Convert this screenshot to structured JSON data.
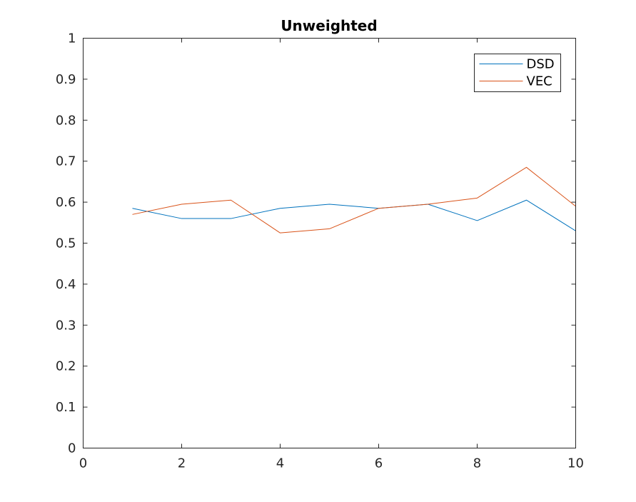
{
  "chart_data": {
    "type": "line",
    "title": "Unweighted",
    "xlabel": "",
    "ylabel": "",
    "xlim": [
      0,
      10
    ],
    "ylim": [
      0,
      1
    ],
    "xticks": [
      0,
      2,
      4,
      6,
      8,
      10
    ],
    "yticks": [
      0,
      0.1,
      0.2,
      0.3,
      0.4,
      0.5,
      0.6,
      0.7,
      0.8,
      0.9,
      1
    ],
    "xtick_labels": [
      "0",
      "2",
      "4",
      "6",
      "8",
      "10"
    ],
    "ytick_labels": [
      "0",
      "0.1",
      "0.2",
      "0.3",
      "0.4",
      "0.5",
      "0.6",
      "0.7",
      "0.8",
      "0.9",
      "1"
    ],
    "grid": false,
    "legend_position": "top-right",
    "x": [
      1,
      2,
      3,
      4,
      5,
      6,
      7,
      8,
      9,
      10
    ],
    "series": [
      {
        "name": "DSD",
        "color": "#0072BD",
        "values": [
          0.585,
          0.56,
          0.56,
          0.585,
          0.595,
          0.585,
          0.595,
          0.555,
          0.605,
          0.53
        ]
      },
      {
        "name": "VEC",
        "color": "#D95319",
        "values": [
          0.57,
          0.595,
          0.605,
          0.525,
          0.535,
          0.585,
          0.595,
          0.61,
          0.685,
          0.59
        ]
      }
    ]
  }
}
